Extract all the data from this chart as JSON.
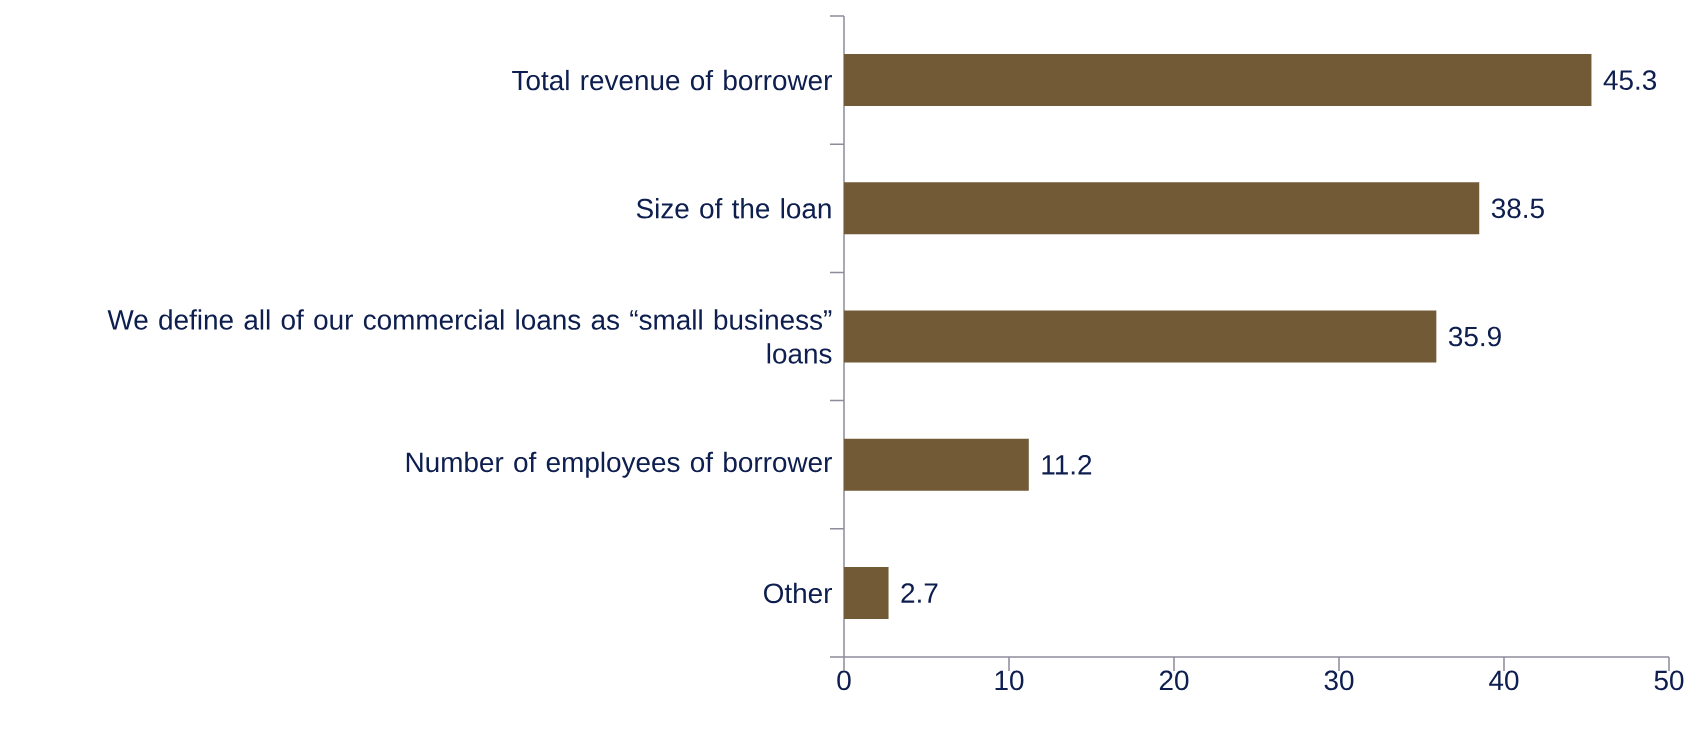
{
  "chart_data": {
    "type": "bar",
    "orientation": "horizontal",
    "categories": [
      "Total revenue of borrower",
      "Size of the loan",
      "We define all of our commercial loans as “small business” loans",
      "Number of employees of borrower",
      "Other"
    ],
    "values": [
      45.3,
      38.5,
      35.9,
      11.2,
      2.7
    ],
    "color": "#725a37",
    "xlim": [
      0,
      50
    ],
    "xticks": [
      0,
      10,
      20,
      30,
      40,
      50
    ],
    "data_labels": true
  }
}
